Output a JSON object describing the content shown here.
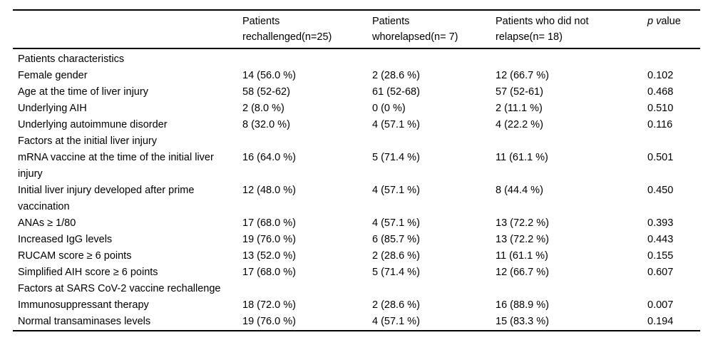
{
  "colors": {
    "background": "#ffffff",
    "text": "#000000",
    "rule": "#000000"
  },
  "table": {
    "columns": [
      {
        "label": ""
      },
      {
        "label": "Patients rechallenged(n=25)",
        "lines": [
          "Patients",
          "rechallenged(n=25)"
        ]
      },
      {
        "label": "Patients whorelapsed(n= 7)",
        "lines": [
          "Patients",
          "whorelapsed(n= 7)"
        ]
      },
      {
        "label": "Patients who did not relapse(n= 18)",
        "lines": [
          "Patients who did not",
          "relapse(n= 18)"
        ]
      },
      {
        "label": "p value",
        "italic": "p v",
        "rest": "alue"
      }
    ],
    "rows": [
      {
        "type": "section",
        "label": "Patients characteristics"
      },
      {
        "type": "data",
        "label": "Female gender",
        "values": [
          "14 (56.0 %)",
          "2 (28.6 %)",
          "12 (66.7 %)",
          "0.102"
        ]
      },
      {
        "type": "data",
        "label": "Age at the time of liver injury",
        "values": [
          "58 (52-62)",
          "61 (52-68)",
          "57 (52-61)",
          "0.468"
        ]
      },
      {
        "type": "data",
        "label": "Underlying AIH",
        "values": [
          "2 (8.0 %)",
          "0 (0 %)",
          "2 (11.1 %)",
          "0.510"
        ]
      },
      {
        "type": "data",
        "label": "Underlying autoimmune disorder",
        "values": [
          "8 (32.0 %)",
          "4 (57.1 %)",
          "4 (22.2 %)",
          "0.116"
        ]
      },
      {
        "type": "section",
        "label": "Factors at the initial liver injury"
      },
      {
        "type": "data",
        "label": "mRNA vaccine at the time of the initial liver injury",
        "values": [
          "16 (64.0 %)",
          "5 (71.4 %)",
          "11 (61.1 %)",
          "0.501"
        ]
      },
      {
        "type": "data",
        "label": "Initial liver injury developed after prime vaccination",
        "values": [
          "12 (48.0 %)",
          "4 (57.1 %)",
          "8 (44.4 %)",
          "0.450"
        ]
      },
      {
        "type": "data",
        "label": "ANAs ≥ 1/80",
        "values": [
          "17 (68.0 %)",
          "4 (57.1 %)",
          "13 (72.2 %)",
          "0.393"
        ]
      },
      {
        "type": "data",
        "label": "Increased IgG levels",
        "values": [
          "19 (76.0 %)",
          "6 (85.7 %)",
          "13 (72.2 %)",
          "0.443"
        ]
      },
      {
        "type": "data",
        "label": "RUCAM score ≥ 6 points",
        "values": [
          "13 (52.0 %)",
          "2 (28.6 %)",
          "11 (61.1 %)",
          "0.155"
        ]
      },
      {
        "type": "data",
        "label": "Simplified AIH score ≥ 6 points",
        "values": [
          "17 (68.0 %)",
          "5 (71.4 %)",
          "12 (66.7 %)",
          "0.607"
        ]
      },
      {
        "type": "section",
        "label": "Factors at SARS CoV-2 vaccine rechallenge"
      },
      {
        "type": "data",
        "label": "Immunosuppressant therapy",
        "values": [
          "18 (72.0 %)",
          "2 (28.6 %)",
          "16 (88.9 %)",
          "0.007"
        ]
      },
      {
        "type": "data",
        "label": "Normal transaminases levels",
        "values": [
          "19 (76.0 %)",
          "4 (57.1 %)",
          "15 (83.3 %)",
          "0.194"
        ]
      }
    ]
  }
}
